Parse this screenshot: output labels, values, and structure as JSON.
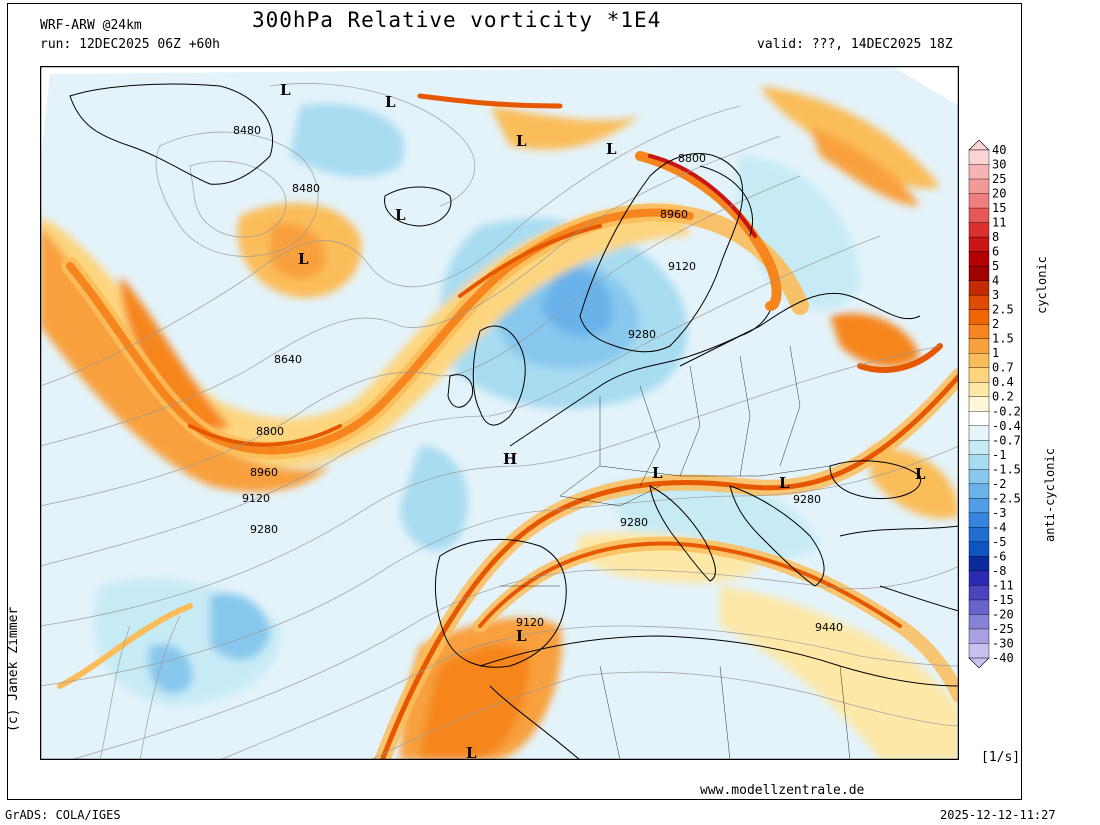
{
  "header": {
    "model": "WRF-ARW @24km",
    "title": "300hPa Relative vorticity *1E4",
    "run": "run: 12DEC2025 06Z +60h",
    "valid": "valid: ???, 14DEC2025 18Z"
  },
  "footer": {
    "credit": "(c) Janek Zimmer",
    "website": "www.modellzentrale.de",
    "grads": "GrADS: COLA/IGES",
    "timestamp": "2025-12-12-11:27",
    "units": "[1/s]"
  },
  "colorbar": {
    "labels": [
      "40",
      "30",
      "25",
      "20",
      "15",
      "11",
      "8",
      "6",
      "5",
      "4",
      "3",
      "2.5",
      "2",
      "1.5",
      "1",
      "0.7",
      "0.4",
      "0.2",
      "-0.2",
      "-0.4",
      "-0.7",
      "-1",
      "-1.5",
      "-2",
      "-2.5",
      "-3",
      "-4",
      "-5",
      "-6",
      "-8",
      "-11",
      "-15",
      "-20",
      "-25",
      "-30",
      "-40"
    ],
    "colors": [
      "#fbd5d5",
      "#f6b3b3",
      "#f29a9a",
      "#ef7f7f",
      "#e65757",
      "#dc3030",
      "#c81515",
      "#b50000",
      "#a00000",
      "#c52a00",
      "#de4a00",
      "#f06500",
      "#f6851d",
      "#f8a03c",
      "#fbbd5a",
      "#fdd57f",
      "#fde8a8",
      "#fff7d8",
      "#ffffff",
      "#e7f5fb",
      "#c7ebf5",
      "#a8dcf1",
      "#88c8ee",
      "#6bb3ea",
      "#4f9de6",
      "#3485dd",
      "#1e6fd0",
      "#0f55c0",
      "#0b2a9c",
      "#2c2ab0",
      "#4a45bf",
      "#6862cc",
      "#8781d8",
      "#a7a1e3",
      "#c6c1ef"
    ],
    "cyclonic_label": "cyclonic",
    "anticyclonic_label": "anti-cyclonic"
  },
  "map": {
    "pressure_systems": [
      {
        "type": "L"
      },
      {
        "type": "L"
      },
      {
        "type": "L"
      },
      {
        "type": "L"
      },
      {
        "type": "L"
      },
      {
        "type": "L"
      },
      {
        "type": "L"
      },
      {
        "type": "L"
      },
      {
        "type": "L"
      },
      {
        "type": "L"
      },
      {
        "type": "L"
      },
      {
        "type": "H"
      }
    ],
    "contour_labels": [
      "8480",
      "8480",
      "8640",
      "8800",
      "8960",
      "9120",
      "9280",
      "8800",
      "8960",
      "9120",
      "9280",
      "9280",
      "9280",
      "9120",
      "9440"
    ],
    "colors": {
      "jet_core": "#e65800",
      "jet_mid": "#f6851d",
      "jet_edge": "#fbbd5a",
      "anticyc_light": "#c7ebf5",
      "anticyc_mid": "#88c8ee",
      "anticyc_deep": "#4f9de6"
    }
  }
}
